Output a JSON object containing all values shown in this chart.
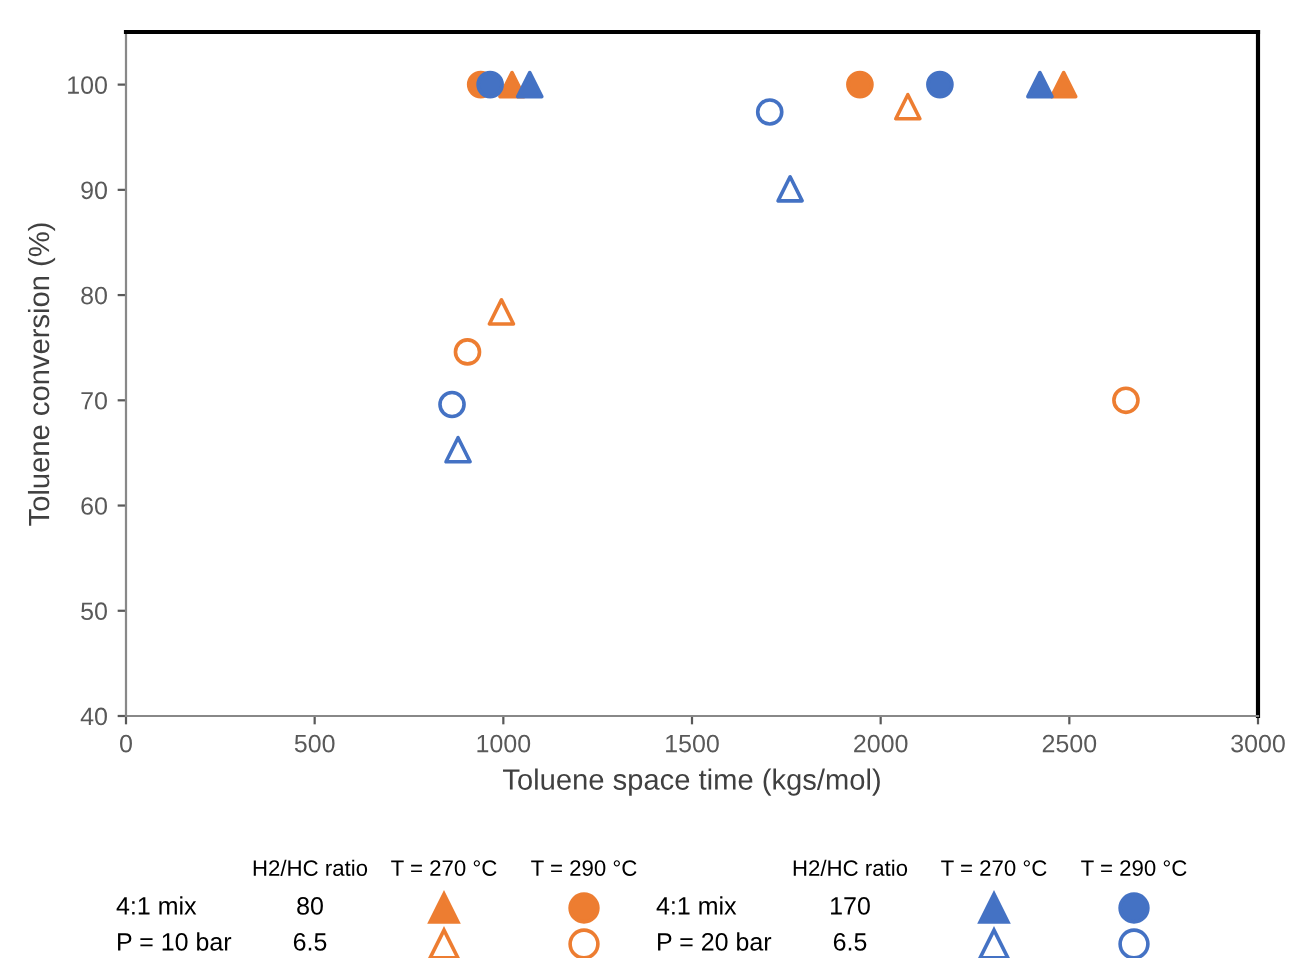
{
  "chart_data": {
    "type": "scatter",
    "xlabel": "Toluene space time (kgs/mol)",
    "ylabel": "Toluene conversion (%)",
    "xlim": [
      0,
      3000
    ],
    "xticks": [
      0,
      500,
      1000,
      1500,
      2000,
      2500,
      3000
    ],
    "ylim": [
      40,
      105
    ],
    "yticks": [
      40,
      50,
      60,
      70,
      80,
      90,
      100
    ],
    "grid": false,
    "legend": false,
    "series": [
      {
        "color": "#ed7d31",
        "marker": "triangle",
        "x": [
          1023,
          2485
        ],
        "values": [
          100,
          100
        ]
      },
      {
        "color": "#ed7d31",
        "marker": "circle",
        "x": [
          940,
          1945
        ],
        "values": [
          100,
          100
        ]
      },
      {
        "color": "#ed7d31",
        "marker": "triangle",
        "x": [
          995,
          2072
        ],
        "values": [
          78.4,
          97.9
        ]
      },
      {
        "color": "#ed7d31",
        "marker": "circle",
        "x": [
          905,
          2650
        ],
        "values": [
          74.6,
          70
        ]
      },
      {
        "color": "#4472c4",
        "marker": "triangle",
        "x": [
          1070,
          2422
        ],
        "values": [
          100,
          100
        ]
      },
      {
        "color": "#4472c4",
        "marker": "circle",
        "x": [
          965,
          2157
        ],
        "values": [
          100,
          100
        ]
      },
      {
        "color": "#4472c4",
        "marker": "triangle",
        "x": [
          880,
          1760
        ],
        "values": [
          65.3,
          90.1
        ]
      },
      {
        "color": "#4472c4",
        "marker": "circle",
        "x": [
          864,
          1706
        ],
        "values": [
          69.6,
          97.4
        ]
      }
    ],
    "annotations": [
      "H2/HC ratio",
      "T = 270 °C",
      "T = 290 °C",
      "4:1 mix",
      "80",
      "P = 10 bar",
      "6.5",
      "H2/HC ratio",
      "T = 270 °C",
      "T = 290 °C",
      "4:1 mix",
      "170",
      "P = 20 bar",
      "6.5"
    ]
  }
}
